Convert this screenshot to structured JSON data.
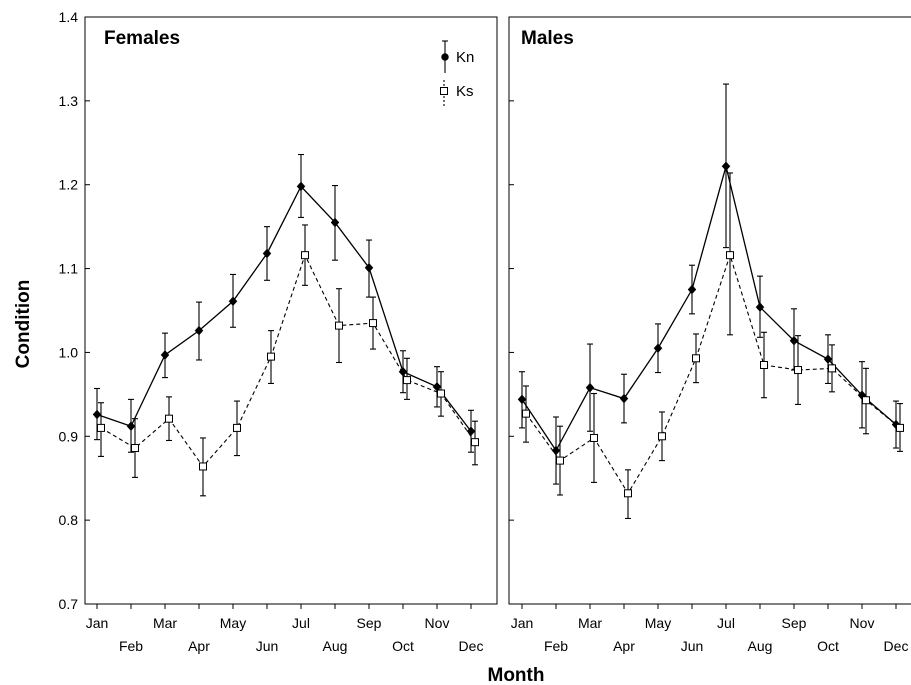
{
  "chart_data": [
    {
      "type": "line",
      "title": "Females",
      "ylim": [
        0.7,
        1.4
      ],
      "yticks": [
        "0.7",
        "0.8",
        "0.9",
        "1.0",
        "1.1",
        "1.2",
        "1.3",
        "1.4"
      ],
      "categories": [
        "Jan",
        "Feb",
        "Mar",
        "Apr",
        "May",
        "Jun",
        "Jul",
        "Aug",
        "Sep",
        "Oct",
        "Nov",
        "Dec"
      ],
      "series": [
        {
          "name": "Kn",
          "values": [
            0.926,
            0.912,
            0.997,
            1.026,
            1.061,
            1.118,
            1.198,
            1.155,
            1.101,
            0.977,
            0.959,
            0.906
          ],
          "err_low": [
            0.896,
            0.881,
            0.97,
            0.991,
            1.03,
            1.086,
            1.161,
            1.11,
            1.066,
            0.952,
            0.935,
            0.881
          ],
          "err_high": [
            0.957,
            0.944,
            1.023,
            1.06,
            1.093,
            1.15,
            1.236,
            1.199,
            1.134,
            1.002,
            0.983,
            0.931
          ]
        },
        {
          "name": "Ks",
          "values": [
            0.91,
            0.886,
            0.921,
            0.864,
            0.91,
            0.995,
            1.116,
            1.032,
            1.035,
            0.967,
            0.951,
            0.893
          ],
          "err_low": [
            0.876,
            0.851,
            0.895,
            0.829,
            0.877,
            0.963,
            1.08,
            0.988,
            1.004,
            0.944,
            0.924,
            0.866
          ],
          "err_high": [
            0.94,
            0.921,
            0.947,
            0.898,
            0.942,
            1.026,
            1.152,
            1.076,
            1.066,
            0.993,
            0.977,
            0.918
          ]
        }
      ]
    },
    {
      "type": "line",
      "title": "Males",
      "ylim": [
        0.7,
        1.4
      ],
      "categories": [
        "Jan",
        "Feb",
        "Mar",
        "Apr",
        "May",
        "Jun",
        "Jul",
        "Aug",
        "Sep",
        "Oct",
        "Nov",
        "Dec"
      ],
      "series": [
        {
          "name": "Kn",
          "values": [
            0.944,
            0.883,
            0.958,
            0.945,
            1.005,
            1.075,
            1.222,
            1.054,
            1.014,
            0.992,
            0.949,
            0.914
          ],
          "err_low": [
            0.91,
            0.843,
            0.906,
            0.916,
            0.976,
            1.046,
            1.125,
            1.018,
            0.979,
            0.963,
            0.91,
            0.886
          ],
          "err_high": [
            0.977,
            0.923,
            1.01,
            0.974,
            1.034,
            1.104,
            1.32,
            1.091,
            1.052,
            1.021,
            0.989,
            0.942
          ]
        },
        {
          "name": "Ks",
          "values": [
            0.927,
            0.871,
            0.898,
            0.832,
            0.9,
            0.993,
            1.116,
            0.985,
            0.979,
            0.981,
            0.943,
            0.91
          ],
          "err_low": [
            0.893,
            0.83,
            0.845,
            0.802,
            0.871,
            0.964,
            1.021,
            0.946,
            0.938,
            0.953,
            0.903,
            0.882
          ],
          "err_high": [
            0.96,
            0.912,
            0.951,
            0.86,
            0.929,
            1.022,
            1.214,
            1.024,
            1.02,
            1.009,
            0.981,
            0.939
          ]
        }
      ]
    }
  ],
  "legend": {
    "labels": [
      "Kn",
      "Ks"
    ],
    "placement": "top-right of first panel"
  },
  "xlabel": "Month",
  "ylabel": "Condition"
}
